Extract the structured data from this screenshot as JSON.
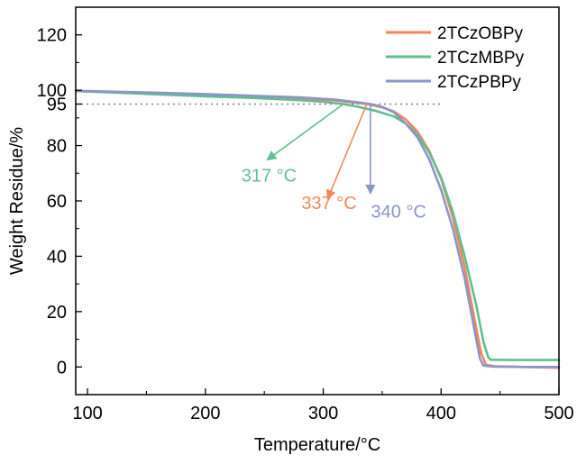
{
  "chart_data": {
    "type": "line",
    "xlabel": "Temperature/°C",
    "ylabel": "Weight Residue/%",
    "xlim": [
      90,
      500
    ],
    "ylim": [
      -10,
      130
    ],
    "xticks": [
      100,
      200,
      300,
      400,
      500
    ],
    "yticks": [
      0,
      20,
      40,
      60,
      80,
      100,
      120
    ],
    "extra_ytick": {
      "value": 95,
      "label": "95"
    },
    "reference_line": {
      "y": 95,
      "x_from": 90,
      "x_to": 400,
      "style": "dotted"
    },
    "legend_position": "top-right",
    "series": [
      {
        "name": "2TCzOBPy",
        "color": "#F2875A",
        "points": [
          [
            90,
            99.7
          ],
          [
            120,
            99.3
          ],
          [
            160,
            98.8
          ],
          [
            200,
            98.2
          ],
          [
            240,
            97.7
          ],
          [
            280,
            97.0
          ],
          [
            310,
            96.3
          ],
          [
            325,
            95.6
          ],
          [
            337,
            95.0
          ],
          [
            350,
            93.8
          ],
          [
            360,
            92.3
          ],
          [
            370,
            89.5
          ],
          [
            380,
            85.0
          ],
          [
            390,
            78.0
          ],
          [
            400,
            68.0
          ],
          [
            410,
            54.0
          ],
          [
            420,
            36.0
          ],
          [
            428,
            18.0
          ],
          [
            434,
            5.0
          ],
          [
            438,
            0.8
          ],
          [
            445,
            0.3
          ],
          [
            470,
            0.0
          ],
          [
            500,
            -0.3
          ]
        ]
      },
      {
        "name": "2TCzMBPy",
        "color": "#5FBF90",
        "points": [
          [
            90,
            99.7
          ],
          [
            120,
            99.2
          ],
          [
            160,
            98.5
          ],
          [
            200,
            97.8
          ],
          [
            240,
            97.2
          ],
          [
            280,
            96.4
          ],
          [
            300,
            95.8
          ],
          [
            317,
            95.0
          ],
          [
            330,
            94.0
          ],
          [
            345,
            92.5
          ],
          [
            360,
            90.5
          ],
          [
            370,
            88.0
          ],
          [
            380,
            84.0
          ],
          [
            390,
            77.5
          ],
          [
            400,
            68.5
          ],
          [
            410,
            56.0
          ],
          [
            420,
            40.0
          ],
          [
            430,
            22.0
          ],
          [
            436,
            9.0
          ],
          [
            440,
            3.5
          ],
          [
            442,
            2.6
          ],
          [
            460,
            2.5
          ],
          [
            500,
            2.5
          ]
        ]
      },
      {
        "name": "2TCzPBPy",
        "color": "#8A96C8",
        "points": [
          [
            90,
            99.8
          ],
          [
            120,
            99.5
          ],
          [
            160,
            99.1
          ],
          [
            200,
            98.6
          ],
          [
            240,
            98.0
          ],
          [
            280,
            97.4
          ],
          [
            310,
            96.6
          ],
          [
            330,
            95.6
          ],
          [
            340,
            95.0
          ],
          [
            350,
            94.0
          ],
          [
            360,
            92.0
          ],
          [
            370,
            88.0
          ],
          [
            380,
            83.0
          ],
          [
            390,
            75.0
          ],
          [
            400,
            64.0
          ],
          [
            410,
            50.0
          ],
          [
            420,
            32.0
          ],
          [
            428,
            14.0
          ],
          [
            433,
            3.0
          ],
          [
            436,
            0.5
          ],
          [
            445,
            0.1
          ],
          [
            470,
            0.0
          ],
          [
            500,
            0.0
          ]
        ]
      }
    ],
    "annotations": [
      {
        "text": "317 °C",
        "color": "#5FBF90",
        "from": [
          317,
          95
        ],
        "to": [
          253,
          75
        ],
        "label_at": [
          254,
          67
        ]
      },
      {
        "text": "337 °C",
        "color": "#F2875A",
        "from": [
          337,
          95
        ],
        "to": [
          304,
          61
        ],
        "label_at": [
          305,
          57
        ]
      },
      {
        "text": "340 °C",
        "color": "#8A96C8",
        "from": [
          340,
          95
        ],
        "to": [
          340,
          63
        ],
        "label_at": [
          364,
          54
        ]
      }
    ]
  }
}
